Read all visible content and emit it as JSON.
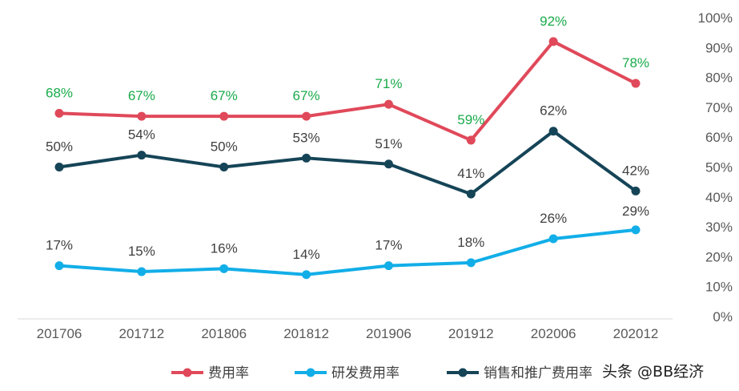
{
  "chart_data": {
    "type": "line",
    "categories": [
      "201706",
      "201712",
      "201806",
      "201812",
      "201906",
      "201912",
      "202006",
      "202012"
    ],
    "series": [
      {
        "name": "费用率",
        "color": "#E0495A",
        "label_color": "#1AAB4B",
        "values": [
          68,
          67,
          67,
          67,
          71,
          59,
          92,
          78
        ],
        "labels": [
          "68%",
          "67%",
          "67%",
          "67%",
          "71%",
          "59%",
          "92%",
          "78%"
        ]
      },
      {
        "name": "研发费用率",
        "color": "#12AEE8",
        "label_color": "#404040",
        "values": [
          17,
          15,
          16,
          14,
          17,
          18,
          26,
          29
        ],
        "labels": [
          "17%",
          "15%",
          "16%",
          "14%",
          "17%",
          "18%",
          "26%",
          "29%"
        ]
      },
      {
        "name": "销售和推广费用率",
        "color": "#154457",
        "label_color": "#404040",
        "values": [
          50,
          54,
          50,
          53,
          51,
          41,
          62,
          42
        ],
        "labels": [
          "50%",
          "54%",
          "50%",
          "53%",
          "51%",
          "41%",
          "62%",
          "42%"
        ]
      }
    ],
    "y_axis": {
      "position": "right",
      "ylim": [
        0,
        100
      ],
      "ticks": [
        "0%",
        "10%",
        "20%",
        "30%",
        "40%",
        "50%",
        "60%",
        "70%",
        "80%",
        "90%",
        "100%"
      ]
    },
    "grid": false,
    "legend_position": "bottom"
  },
  "watermark": "头条 @BB经济"
}
